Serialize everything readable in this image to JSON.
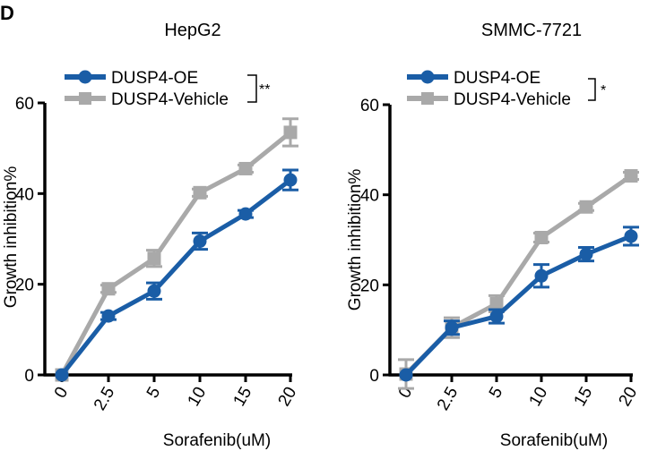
{
  "panel_label": "D",
  "legend": {
    "oe": "DUSP4-OE",
    "vehicle": "DUSP4-Vehicle"
  },
  "colors": {
    "oe": "#1a5da6",
    "vehicle": "#a9a9a9"
  },
  "chart_data": [
    {
      "type": "line",
      "title": "HepG2",
      "xlabel": "Sorafenib(uM)",
      "ylabel": "Growth inhibition%",
      "categories": [
        "0",
        "2.5",
        "5",
        "10",
        "15",
        "20"
      ],
      "ylim": [
        0,
        60
      ],
      "yticks": [
        "0",
        "20",
        "40",
        "60"
      ],
      "significance": "**",
      "series": [
        {
          "name": "DUSP4-OE",
          "values": [
            0,
            13,
            18.5,
            29.5,
            35.5,
            43
          ],
          "errors": [
            0.5,
            0.8,
            1.8,
            1.8,
            0.8,
            2.2
          ]
        },
        {
          "name": "DUSP4-Vehicle",
          "values": [
            0,
            19,
            25.7,
            40.2,
            45.5,
            53.5
          ],
          "errors": [
            0.5,
            0.8,
            1.8,
            0.8,
            0.8,
            3
          ]
        }
      ]
    },
    {
      "type": "line",
      "title": "SMMC-7721",
      "xlabel": "Sorafenib(uM)",
      "ylabel": "Growth inhibition%",
      "categories": [
        "0",
        "2.5",
        "5",
        "10",
        "15",
        "20"
      ],
      "ylim": [
        0,
        60
      ],
      "yticks": [
        "0",
        "20",
        "40",
        "60"
      ],
      "significance": "*",
      "series": [
        {
          "name": "DUSP4-OE",
          "values": [
            0,
            10.5,
            13,
            22,
            26.8,
            30.8
          ],
          "errors": [
            0.5,
            1.5,
            1.5,
            2.5,
            1.5,
            2
          ]
        },
        {
          "name": "DUSP4-Vehicle",
          "values": [
            0.2,
            10.5,
            15.8,
            30.5,
            37.3,
            44.2
          ],
          "errors": [
            3.2,
            2.2,
            1.8,
            1,
            0.8,
            0.8
          ]
        }
      ]
    }
  ]
}
